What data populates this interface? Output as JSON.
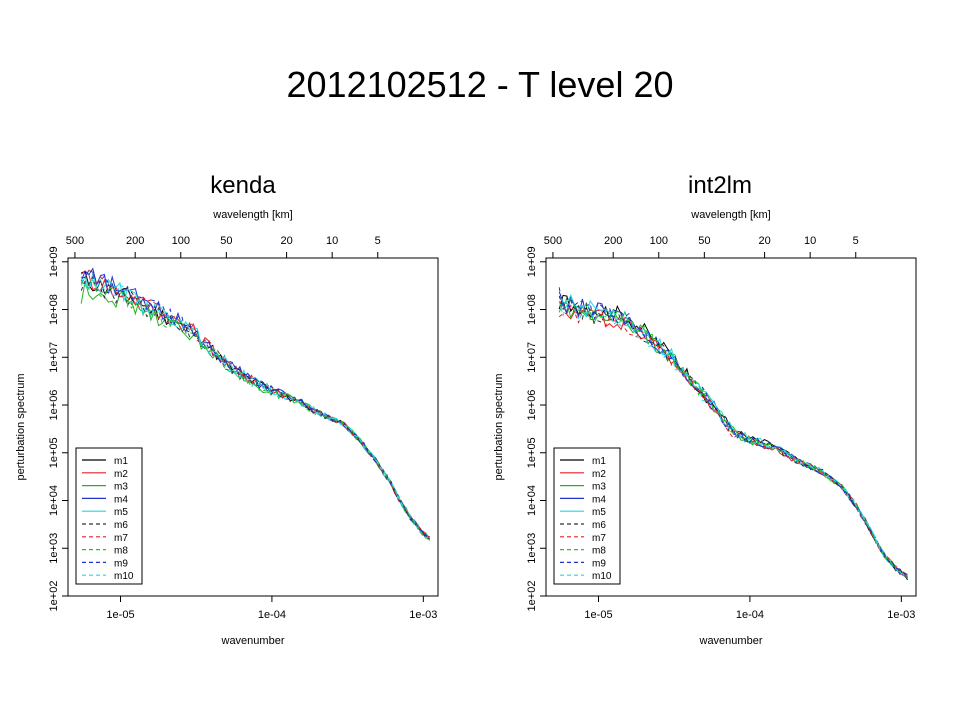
{
  "slide": {
    "title": "2012102512 - T level 20"
  },
  "chart_data": [
    {
      "type": "line",
      "panel_title": "kenda",
      "xlabel": "wavenumber",
      "ylabel": "perturbation spectrum",
      "top_axis_label": "wavelength [km]",
      "x_scale": "log",
      "y_scale": "log",
      "xlim": [
        4.5e-06,
        0.00125
      ],
      "ylim": [
        100,
        1200000000.0
      ],
      "x_ticks": [
        {
          "value": 1e-05,
          "label": "1e-05"
        },
        {
          "value": 0.0001,
          "label": "1e-04"
        },
        {
          "value": 0.001,
          "label": "1e-03"
        }
      ],
      "y_ticks": [
        {
          "value": 100,
          "label": "1e+02"
        },
        {
          "value": 1000,
          "label": "1e+03"
        },
        {
          "value": 10000,
          "label": "1e+04"
        },
        {
          "value": 100000,
          "label": "1e+05"
        },
        {
          "value": 1000000,
          "label": "1e+06"
        },
        {
          "value": 10000000,
          "label": "1e+07"
        },
        {
          "value": 100000000,
          "label": "1e+08"
        },
        {
          "value": 1000000000,
          "label": "1e+09"
        }
      ],
      "top_ticks": [
        {
          "value": 2e-06,
          "label": "500"
        },
        {
          "value": 5e-06,
          "label": "200"
        },
        {
          "value": 1e-05,
          "label": "100"
        },
        {
          "value": 2e-05,
          "label": "50"
        },
        {
          "value": 5e-05,
          "label": "20"
        },
        {
          "value": 0.0001,
          "label": "10"
        },
        {
          "value": 0.0002,
          "label": "5"
        }
      ],
      "legend_position": "bottom-left",
      "series": [
        {
          "name": "m1",
          "color": "#000000",
          "dash": false
        },
        {
          "name": "m2",
          "color": "#e8202a",
          "dash": false
        },
        {
          "name": "m3",
          "color": "#22b422",
          "dash": false
        },
        {
          "name": "m4",
          "color": "#2233cc",
          "dash": false
        },
        {
          "name": "m5",
          "color": "#22d8e0",
          "dash": false
        },
        {
          "name": "m6",
          "color": "#333333",
          "dash": true
        },
        {
          "name": "m7",
          "color": "#e8202a",
          "dash": true
        },
        {
          "name": "m8",
          "color": "#22c822",
          "dash": true
        },
        {
          "name": "m9",
          "color": "#2233cc",
          "dash": true
        },
        {
          "name": "m10",
          "color": "#22d8e0",
          "dash": true
        }
      ],
      "curve_template": [
        [
          5.5e-06,
          450000000.0
        ],
        [
          1e-05,
          220000000.0
        ],
        [
          2e-05,
          70000000.0
        ],
        [
          3e-05,
          35000000.0
        ],
        [
          4e-05,
          15000000.0
        ],
        [
          5e-05,
          7000000.0
        ],
        [
          7e-05,
          3500000.0
        ],
        [
          0.0001,
          2000000.0
        ],
        [
          0.00015,
          1200000.0
        ],
        [
          0.0002,
          700000.0
        ],
        [
          0.0003,
          400000.0
        ],
        [
          0.0004,
          150000.0
        ],
        [
          0.0005,
          60000.0
        ],
        [
          0.0006,
          25000.0
        ],
        [
          0.0007,
          10000.0
        ],
        [
          0.0008,
          5000.0
        ],
        [
          0.001,
          2000.0
        ],
        [
          0.0011,
          1600.0
        ]
      ],
      "series_offsets": [
        0.0,
        0.04,
        -0.15,
        0.1,
        0.02,
        -0.05,
        0.06,
        -0.08,
        0.12,
        -0.02
      ],
      "series_start_overrides": [
        [
          [
            5.5e-06,
            500000000.0
          ]
        ],
        [
          [
            5.5e-06,
            800000000.0
          ]
        ],
        [
          [
            5.5e-06,
            120000000.0
          ]
        ],
        [
          [
            5.5e-06,
            600000000.0
          ]
        ],
        [
          [
            5.5e-06,
            300000000.0
          ]
        ],
        [
          [
            5.5e-06,
            400000000.0
          ]
        ],
        [
          [
            5.5e-06,
            350000000.0
          ]
        ],
        [
          [
            5.5e-06,
            250000000.0
          ]
        ],
        [
          [
            5.5e-06,
            500000000.0
          ]
        ],
        [
          [
            5.5e-06,
            300000000.0
          ]
        ]
      ]
    },
    {
      "type": "line",
      "panel_title": "int2lm",
      "xlabel": "wavenumber",
      "ylabel": "perturbation spectrum",
      "top_axis_label": "wavelength [km]",
      "x_scale": "log",
      "y_scale": "log",
      "xlim": [
        4.5e-06,
        0.00125
      ],
      "ylim": [
        100,
        1200000000.0
      ],
      "x_ticks": [
        {
          "value": 1e-05,
          "label": "1e-05"
        },
        {
          "value": 0.0001,
          "label": "1e-04"
        },
        {
          "value": 0.001,
          "label": "1e-03"
        }
      ],
      "y_ticks": [
        {
          "value": 100,
          "label": "1e+02"
        },
        {
          "value": 1000,
          "label": "1e+03"
        },
        {
          "value": 10000,
          "label": "1e+04"
        },
        {
          "value": 100000,
          "label": "1e+05"
        },
        {
          "value": 1000000,
          "label": "1e+06"
        },
        {
          "value": 10000000,
          "label": "1e+07"
        },
        {
          "value": 100000000,
          "label": "1e+08"
        },
        {
          "value": 1000000000,
          "label": "1e+09"
        }
      ],
      "top_ticks": [
        {
          "value": 2e-06,
          "label": "500"
        },
        {
          "value": 5e-06,
          "label": "200"
        },
        {
          "value": 1e-05,
          "label": "100"
        },
        {
          "value": 2e-05,
          "label": "50"
        },
        {
          "value": 5e-05,
          "label": "20"
        },
        {
          "value": 0.0001,
          "label": "10"
        },
        {
          "value": 0.0002,
          "label": "5"
        }
      ],
      "legend_position": "bottom-left",
      "series": [
        {
          "name": "m1",
          "color": "#000000",
          "dash": false
        },
        {
          "name": "m2",
          "color": "#e8202a",
          "dash": false
        },
        {
          "name": "m3",
          "color": "#22b422",
          "dash": false
        },
        {
          "name": "m4",
          "color": "#2233cc",
          "dash": false
        },
        {
          "name": "m5",
          "color": "#22d8e0",
          "dash": false
        },
        {
          "name": "m6",
          "color": "#333333",
          "dash": true
        },
        {
          "name": "m7",
          "color": "#e8202a",
          "dash": true
        },
        {
          "name": "m8",
          "color": "#22c822",
          "dash": true
        },
        {
          "name": "m9",
          "color": "#2233cc",
          "dash": true
        },
        {
          "name": "m10",
          "color": "#22d8e0",
          "dash": true
        }
      ],
      "curve_template": [
        [
          5.5e-06,
          120000000.0
        ],
        [
          1e-05,
          80000000.0
        ],
        [
          1.5e-05,
          60000000.0
        ],
        [
          2e-05,
          30000000.0
        ],
        [
          3e-05,
          10000000.0
        ],
        [
          4e-05,
          3500000.0
        ],
        [
          5e-05,
          1500000.0
        ],
        [
          6e-05,
          800000.0
        ],
        [
          7e-05,
          400000.0
        ],
        [
          8e-05,
          250000.0
        ],
        [
          0.0001,
          180000.0
        ],
        [
          0.00015,
          130000.0
        ],
        [
          0.0002,
          70000.0
        ],
        [
          0.0003,
          40000.0
        ],
        [
          0.0004,
          20000.0
        ],
        [
          0.0005,
          8000.0
        ],
        [
          0.0006,
          3000.0
        ],
        [
          0.0007,
          1200.0
        ],
        [
          0.0008,
          600
        ],
        [
          0.001,
          300
        ],
        [
          0.0011,
          250
        ]
      ],
      "series_offsets": [
        0.1,
        -0.05,
        0.0,
        0.05,
        0.08,
        -0.02,
        -0.1,
        0.03,
        0.06,
        -0.04
      ],
      "series_start_overrides": [
        [
          [
            5.5e-06,
            100000000.0
          ]
        ],
        [
          [
            5.5e-06,
            90000000.0
          ]
        ],
        [
          [
            5.5e-06,
            90000000.0
          ]
        ],
        [
          [
            5.5e-06,
            150000000.0
          ]
        ],
        [
          [
            5.5e-06,
            200000000.0
          ]
        ],
        [
          [
            5.5e-06,
            130000000.0
          ]
        ],
        [
          [
            5.5e-06,
            80000000.0
          ]
        ],
        [
          [
            5.5e-06,
            100000000.0
          ]
        ],
        [
          [
            5.5e-06,
            350000000.0
          ]
        ],
        [
          [
            5.5e-06,
            110000000.0
          ]
        ]
      ]
    }
  ]
}
